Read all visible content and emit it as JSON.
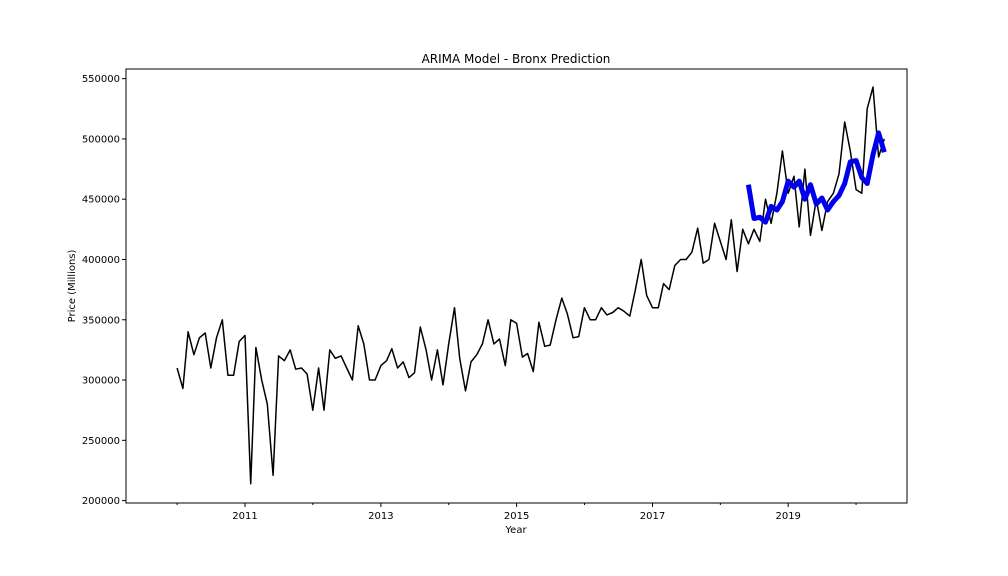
{
  "chart_data": {
    "type": "line",
    "title": "ARIMA Model - Bronx Prediction",
    "xlabel": "Year",
    "ylabel": "Price (Millions)",
    "xlim": [
      "2009-04-01",
      "2020-10-01"
    ],
    "ylim": [
      198000,
      558000
    ],
    "yticks": [
      200000,
      250000,
      300000,
      350000,
      400000,
      450000,
      500000,
      550000
    ],
    "xticks": [
      {
        "label": "2011",
        "date": "2011-01-01"
      },
      {
        "label": "2013",
        "date": "2013-01-01"
      },
      {
        "label": "2015",
        "date": "2015-01-01"
      },
      {
        "label": "2017",
        "date": "2017-01-01"
      },
      {
        "label": "2019",
        "date": "2019-01-01"
      }
    ],
    "xminor": [
      "2010-01-01",
      "2012-01-01",
      "2014-01-01",
      "2016-01-01",
      "2018-01-01",
      "2020-01-01"
    ],
    "grid": false,
    "series": [
      {
        "color": "#000000",
        "width": 1.5,
        "x": [
          "2010-01-01",
          "2010-02-01",
          "2010-03-01",
          "2010-04-01",
          "2010-05-01",
          "2010-06-01",
          "2010-07-01",
          "2010-08-01",
          "2010-09-01",
          "2010-10-01",
          "2010-11-01",
          "2010-12-01",
          "2011-01-01",
          "2011-02-01",
          "2011-03-01",
          "2011-04-01",
          "2011-05-01",
          "2011-06-01",
          "2011-07-01",
          "2011-08-01",
          "2011-09-01",
          "2011-10-01",
          "2011-11-01",
          "2011-12-01",
          "2012-01-01",
          "2012-02-01",
          "2012-03-01",
          "2012-04-01",
          "2012-05-01",
          "2012-06-01",
          "2012-07-01",
          "2012-08-01",
          "2012-09-01",
          "2012-10-01",
          "2012-11-01",
          "2012-12-01",
          "2013-01-01",
          "2013-02-01",
          "2013-03-01",
          "2013-04-01",
          "2013-05-01",
          "2013-06-01",
          "2013-07-01",
          "2013-08-01",
          "2013-09-01",
          "2013-10-01",
          "2013-11-01",
          "2013-12-01",
          "2014-01-01",
          "2014-02-01",
          "2014-03-01",
          "2014-04-01",
          "2014-05-01",
          "2014-06-01",
          "2014-07-01",
          "2014-08-01",
          "2014-09-01",
          "2014-10-01",
          "2014-11-01",
          "2014-12-01",
          "2015-01-01",
          "2015-02-01",
          "2015-03-01",
          "2015-04-01",
          "2015-05-01",
          "2015-06-01",
          "2015-07-01",
          "2015-08-01",
          "2015-09-01",
          "2015-10-01",
          "2015-11-01",
          "2015-12-01",
          "2016-01-01",
          "2016-02-01",
          "2016-03-01",
          "2016-04-01",
          "2016-05-01",
          "2016-06-01",
          "2016-07-01",
          "2016-08-01",
          "2016-09-01",
          "2016-10-01",
          "2016-11-01",
          "2016-12-01",
          "2017-01-01",
          "2017-02-01",
          "2017-03-01",
          "2017-04-01",
          "2017-05-01",
          "2017-06-01",
          "2017-07-01",
          "2017-08-01",
          "2017-09-01",
          "2017-10-01",
          "2017-11-01",
          "2017-12-01",
          "2018-01-01",
          "2018-02-01",
          "2018-03-01",
          "2018-04-01",
          "2018-05-01",
          "2018-06-01",
          "2018-07-01",
          "2018-08-01",
          "2018-09-01",
          "2018-10-01",
          "2018-11-01",
          "2018-12-01",
          "2019-01-01",
          "2019-02-01",
          "2019-03-01",
          "2019-04-01",
          "2019-05-01",
          "2019-06-01",
          "2019-07-01",
          "2019-08-01",
          "2019-09-01",
          "2019-10-01",
          "2019-11-01",
          "2019-12-01",
          "2020-01-01",
          "2020-02-01",
          "2020-03-01",
          "2020-04-01",
          "2020-05-01",
          "2020-06-01"
        ],
        "y": [
          310000,
          293000,
          340000,
          321000,
          335000,
          339000,
          310000,
          335000,
          350000,
          304000,
          304000,
          332000,
          337000,
          214000,
          327000,
          300000,
          280000,
          221000,
          320000,
          316000,
          325000,
          309000,
          310000,
          305000,
          275000,
          310000,
          275000,
          325000,
          318000,
          320000,
          310000,
          300000,
          345000,
          330000,
          300000,
          300000,
          312000,
          316000,
          326000,
          310000,
          315000,
          302000,
          306000,
          344000,
          325000,
          300000,
          325000,
          296000,
          330000,
          360000,
          318000,
          291000,
          315000,
          321000,
          330000,
          350000,
          330000,
          334000,
          312000,
          350000,
          347000,
          319000,
          322000,
          307000,
          348000,
          328000,
          329000,
          350000,
          368000,
          355000,
          335000,
          336000,
          360000,
          350000,
          350000,
          360000,
          354000,
          356000,
          360000,
          357000,
          353000,
          375000,
          400000,
          370000,
          360000,
          360000,
          380000,
          375000,
          395000,
          400000,
          400000,
          406000,
          426000,
          397000,
          400000,
          430000,
          415000,
          400000,
          433000,
          390000,
          425000,
          413000,
          425000,
          415000,
          450000,
          430000,
          455000,
          490000,
          455000,
          469000,
          427000,
          475000,
          420000,
          450000,
          424000,
          448000,
          455000,
          471000,
          514000,
          490000,
          458000,
          455000,
          525000,
          543000,
          485000,
          500000
        ]
      },
      {
        "color": "#0000ee",
        "width": 5,
        "x": [
          "2018-06-01",
          "2018-07-01",
          "2018-08-01",
          "2018-09-01",
          "2018-10-01",
          "2018-11-01",
          "2018-12-01",
          "2019-01-01",
          "2019-02-01",
          "2019-03-01",
          "2019-04-01",
          "2019-05-01",
          "2019-06-01",
          "2019-07-01",
          "2019-08-01",
          "2019-09-01",
          "2019-10-01",
          "2019-11-01",
          "2019-12-01",
          "2020-01-01",
          "2020-02-01",
          "2020-03-01",
          "2020-04-01",
          "2020-05-01",
          "2020-06-01"
        ],
        "y": [
          462000,
          434000,
          435000,
          431000,
          444000,
          441000,
          448000,
          465000,
          460000,
          465000,
          450000,
          462000,
          446000,
          451000,
          441000,
          448000,
          453000,
          463000,
          481000,
          482000,
          468000,
          463000,
          487000,
          505000,
          489000
        ]
      }
    ]
  }
}
